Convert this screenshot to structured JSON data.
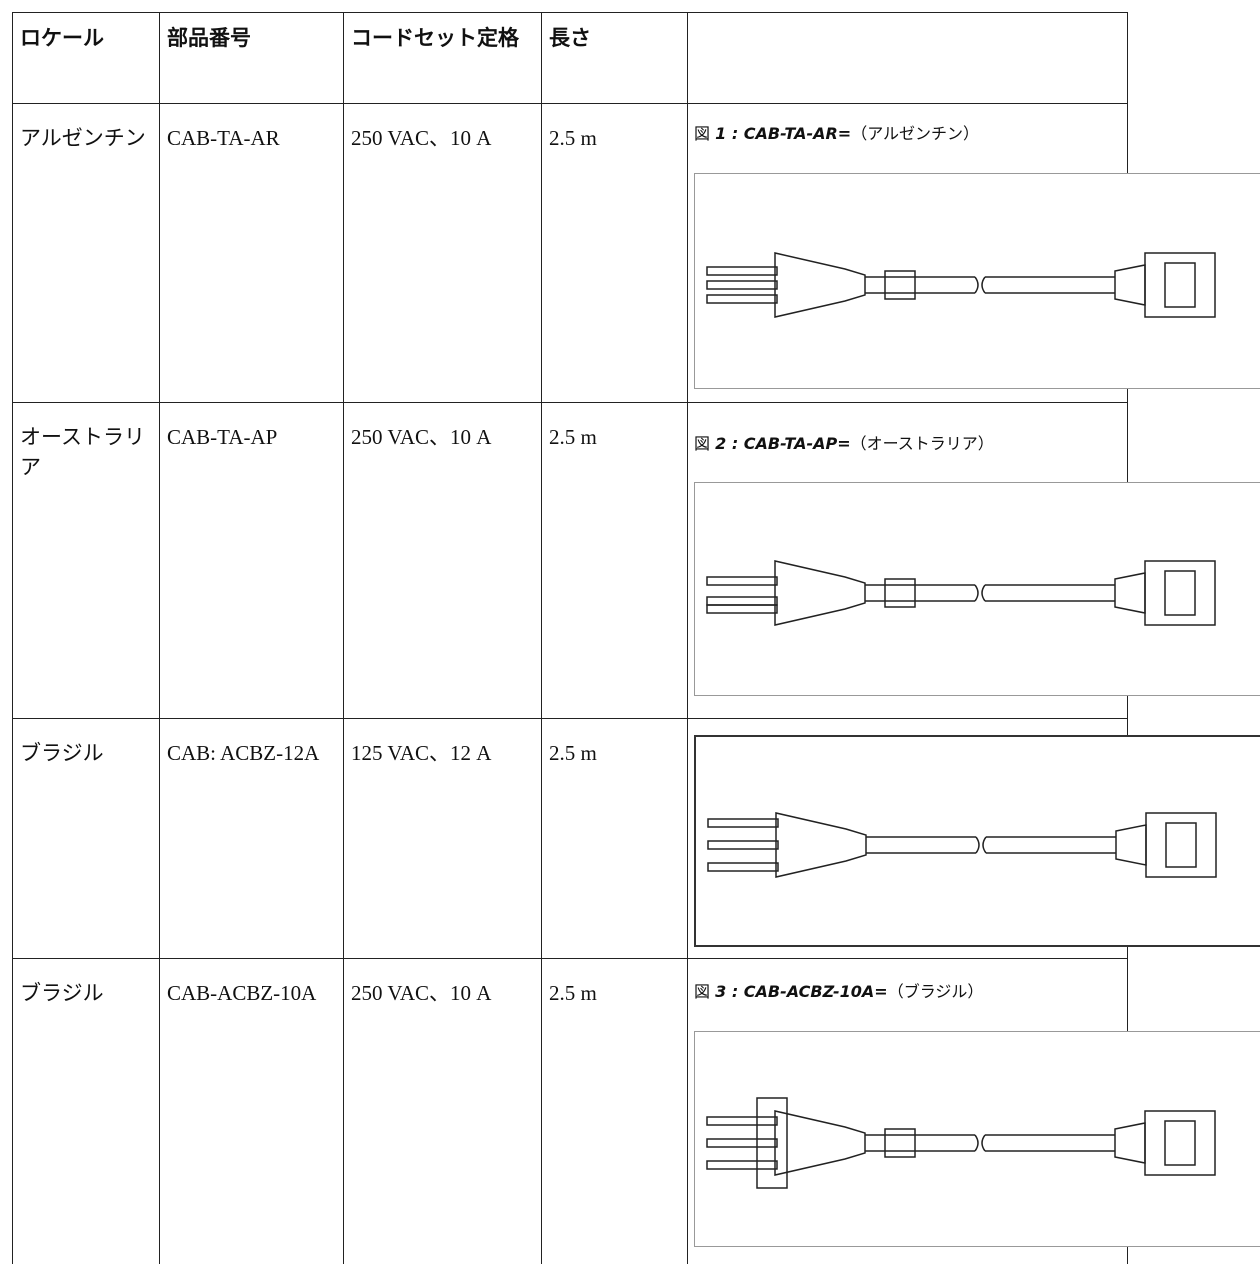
{
  "table": {
    "headers": [
      "ロケール",
      "部品番号",
      "コードセット定格",
      "長さ"
    ],
    "rows": [
      {
        "cells": [
          "アルゼンチン",
          "CAB-TA-AR",
          "250 VAC、10 A",
          "2.5 m"
        ],
        "figure": {
          "label": "図",
          "number": "1 : CAB-TA-AR=",
          "text": "（アルゼンチン）"
        }
      },
      {
        "cells": [
          "オーストラリア",
          "CAB-TA-AP",
          "250 VAC、10 A",
          "2.5 m"
        ],
        "figure": {
          "label": "図",
          "number": "2 : CAB-TA-AP=",
          "text": "（オーストラリア）"
        }
      },
      {
        "cells": [
          "ブラジル",
          "CAB: ACBZ-12A",
          "125 VAC、12 A",
          "2.5 m"
        ]
      },
      {
        "cells": [
          "ブラジル",
          "CAB-ACBZ-10A",
          "250 VAC、10 A",
          "2.5 m"
        ],
        "figure": {
          "label": "図",
          "number": "3 : CAB-ACBZ-10A=",
          "text": "（ブラジル）"
        }
      }
    ]
  }
}
